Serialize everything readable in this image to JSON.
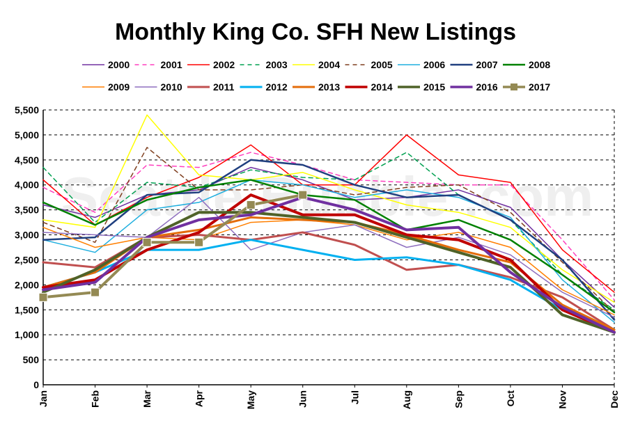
{
  "chart_data": {
    "type": "line",
    "title": "Monthly King Co. SFH New Listings",
    "xlabel": "",
    "ylabel": "",
    "watermark": "Seattle Bubble .com",
    "categories": [
      "Jan",
      "Feb",
      "Mar",
      "Apr",
      "May",
      "Jun",
      "Jul",
      "Aug",
      "Sep",
      "Oct",
      "Nov",
      "Dec"
    ],
    "ylim": [
      0,
      5500
    ],
    "yticks": [
      0,
      500,
      1000,
      1500,
      2000,
      2500,
      3000,
      3500,
      4000,
      4500,
      5000,
      5500
    ],
    "ytick_labels": [
      "0",
      "500",
      "1,000",
      "1,500",
      "2,000",
      "2,500",
      "3,000",
      "3,500",
      "4,000",
      "4,500",
      "5,000",
      "5,500"
    ],
    "grid": "horizontal dashed",
    "legend_position": "top",
    "series": [
      {
        "name": "2000",
        "color": "#7030a0",
        "style": "solid",
        "width": 1.5,
        "values": [
          3600,
          3350,
          3800,
          3900,
          4350,
          4100,
          3700,
          3750,
          3900,
          3550,
          2500,
          1550
        ]
      },
      {
        "name": "2001",
        "color": "#ff3fbf",
        "style": "dashed",
        "width": 1.5,
        "values": [
          3950,
          3450,
          4400,
          4350,
          4650,
          4400,
          4100,
          4050,
          4000,
          4000,
          2900,
          1700
        ]
      },
      {
        "name": "2002",
        "color": "#ff0000",
        "style": "solid",
        "width": 1.5,
        "values": [
          4100,
          3200,
          3750,
          4150,
          4800,
          4000,
          4000,
          5000,
          4200,
          4050,
          2700,
          1850
        ]
      },
      {
        "name": "2003",
        "color": "#00a050",
        "style": "dashed",
        "width": 1.5,
        "values": [
          4350,
          3250,
          4050,
          3950,
          4300,
          4150,
          4100,
          4650,
          3800,
          3300,
          2200,
          1500
        ]
      },
      {
        "name": "2004",
        "color": "#ffff00",
        "style": "solid",
        "width": 1.5,
        "values": [
          3300,
          3150,
          5400,
          4200,
          4100,
          4250,
          3900,
          3600,
          3450,
          3150,
          2300,
          1650
        ]
      },
      {
        "name": "2005",
        "color": "#7f3f1f",
        "style": "dashed",
        "width": 1.5,
        "values": [
          3250,
          2850,
          4750,
          3900,
          3900,
          4000,
          3800,
          3950,
          4000,
          3450,
          2450,
          1450
        ]
      },
      {
        "name": "2006",
        "color": "#1fafdf",
        "style": "solid",
        "width": 1.5,
        "values": [
          2900,
          2650,
          3500,
          3650,
          4100,
          4000,
          3750,
          3900,
          3750,
          3350,
          2100,
          1250
        ]
      },
      {
        "name": "2007",
        "color": "#1f3f7f",
        "style": "solid",
        "width": 2.5,
        "values": [
          2900,
          2950,
          3800,
          3850,
          4500,
          4400,
          4000,
          3750,
          3800,
          3300,
          2500,
          1300
        ]
      },
      {
        "name": "2008",
        "color": "#008000",
        "style": "solid",
        "width": 2.5,
        "values": [
          3650,
          3200,
          3700,
          3950,
          4100,
          3800,
          3700,
          3100,
          3300,
          2900,
          2200,
          1450
        ]
      },
      {
        "name": "2009",
        "color": "#ff7f00",
        "style": "solid",
        "width": 1.5,
        "values": [
          3150,
          2750,
          2950,
          2900,
          3250,
          3300,
          3200,
          2900,
          3050,
          2750,
          1900,
          1400
        ]
      },
      {
        "name": "2010",
        "color": "#8f6fbf",
        "style": "solid",
        "width": 1.5,
        "values": [
          3050,
          3000,
          2950,
          3750,
          2700,
          3050,
          3200,
          2750,
          2950,
          2600,
          1850,
          1350
        ]
      },
      {
        "name": "2011",
        "color": "#c04f4f",
        "style": "solid",
        "width": 3,
        "values": [
          2450,
          2350,
          2950,
          3000,
          2900,
          3050,
          2800,
          2300,
          2400,
          2150,
          1750,
          1100
        ]
      },
      {
        "name": "2012",
        "color": "#00b0f0",
        "style": "solid",
        "width": 3,
        "values": [
          1950,
          2250,
          2700,
          2700,
          2900,
          2700,
          2500,
          2550,
          2400,
          2100,
          1500,
          1050
        ]
      },
      {
        "name": "2013",
        "color": "#e46c0a",
        "style": "solid",
        "width": 3,
        "values": [
          1950,
          2250,
          2950,
          3100,
          3350,
          3300,
          3250,
          3000,
          2700,
          2450,
          1600,
          1100
        ]
      },
      {
        "name": "2014",
        "color": "#c00000",
        "style": "solid",
        "width": 4,
        "values": [
          1950,
          2100,
          2700,
          3050,
          3800,
          3400,
          3400,
          3000,
          2900,
          2500,
          1500,
          1050
        ]
      },
      {
        "name": "2015",
        "color": "#4f6228",
        "style": "solid",
        "width": 4,
        "values": [
          1850,
          2300,
          2950,
          3450,
          3450,
          3350,
          3250,
          2950,
          2650,
          2350,
          1400,
          1050
        ]
      },
      {
        "name": "2016",
        "color": "#7030a0",
        "style": "solid",
        "width": 4,
        "values": [
          1900,
          2050,
          2950,
          3300,
          3400,
          3750,
          3500,
          3100,
          3150,
          2250,
          1550,
          1050
        ]
      },
      {
        "name": "2017",
        "color": "#948a54",
        "style": "solid-square",
        "width": 4,
        "values": [
          1750,
          1850,
          2850,
          2850,
          3600,
          3800,
          null,
          null,
          null,
          null,
          null,
          null
        ]
      }
    ]
  }
}
